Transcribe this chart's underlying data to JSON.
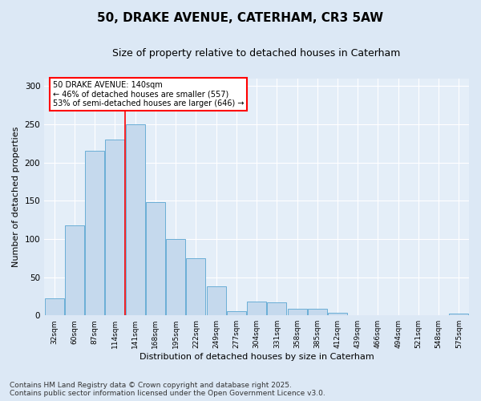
{
  "title": "50, DRAKE AVENUE, CATERHAM, CR3 5AW",
  "subtitle": "Size of property relative to detached houses in Caterham",
  "xlabel": "Distribution of detached houses by size in Caterham",
  "ylabel": "Number of detached properties",
  "categories": [
    "32sqm",
    "60sqm",
    "87sqm",
    "114sqm",
    "141sqm",
    "168sqm",
    "195sqm",
    "222sqm",
    "249sqm",
    "277sqm",
    "304sqm",
    "331sqm",
    "358sqm",
    "385sqm",
    "412sqm",
    "439sqm",
    "466sqm",
    "494sqm",
    "521sqm",
    "548sqm",
    "575sqm"
  ],
  "values": [
    22,
    118,
    215,
    230,
    250,
    148,
    100,
    75,
    38,
    5,
    18,
    17,
    9,
    9,
    3,
    0,
    0,
    0,
    0,
    0,
    2
  ],
  "bar_color": "#c5d9ed",
  "bar_edge_color": "#6aaed6",
  "red_line_x": 3.5,
  "red_line_label": "50 DRAKE AVENUE: 140sqm",
  "annotation_line1": "← 46% of detached houses are smaller (557)",
  "annotation_line2": "53% of semi-detached houses are larger (646) →",
  "annotation_box_color": "white",
  "annotation_box_edge_color": "red",
  "background_color": "#dce8f5",
  "plot_background_color": "#e4eef8",
  "footer_line1": "Contains HM Land Registry data © Crown copyright and database right 2025.",
  "footer_line2": "Contains public sector information licensed under the Open Government Licence v3.0.",
  "ylim": [
    0,
    310
  ],
  "yticks": [
    0,
    50,
    100,
    150,
    200,
    250,
    300
  ],
  "title_fontsize": 11,
  "subtitle_fontsize": 9,
  "axis_label_fontsize": 8,
  "tick_fontsize": 6.5,
  "footer_fontsize": 6.5
}
